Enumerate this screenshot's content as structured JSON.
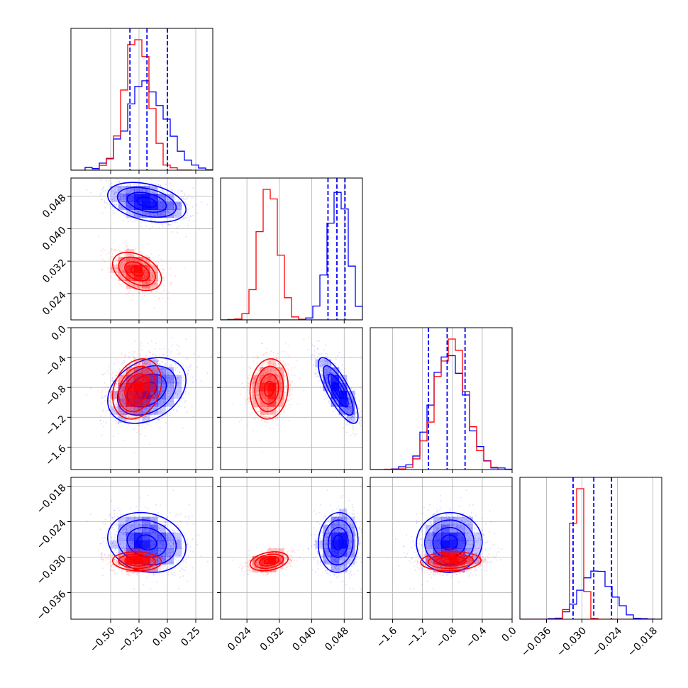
{
  "colors": {
    "blue": "#0000ff",
    "red": "#ff0000"
  },
  "chart_data": {
    "type": "corner",
    "title": "",
    "grid": true,
    "parameters": [
      {
        "ticks": [
          -0.5,
          -0.25,
          0.0,
          0.25
        ],
        "tick_labels": [
          "−0.50",
          "−0.25",
          "0.00",
          "0.25"
        ],
        "range": [
          -0.85,
          0.4
        ]
      },
      {
        "ticks": [
          0.024,
          0.032,
          0.04,
          0.048
        ],
        "tick_labels": [
          "0.024",
          "0.032",
          "0.040",
          "0.048"
        ],
        "range": [
          0.0175,
          0.0525
        ]
      },
      {
        "ticks": [
          -1.6,
          -1.2,
          -0.8,
          -0.4,
          0.0
        ],
        "tick_labels": [
          "−1.6",
          "−1.2",
          "−0.8",
          "−0.4",
          "0.0"
        ],
        "range": [
          -1.9,
          0.0
        ]
      },
      {
        "ticks": [
          -0.036,
          -0.03,
          -0.024,
          -0.018
        ],
        "tick_labels": [
          "−0.036",
          "−0.030",
          "−0.024",
          "−0.018"
        ],
        "range": [
          -0.0405,
          -0.0165
        ]
      }
    ],
    "series": [
      {
        "name": "",
        "color": "#0000ff",
        "mean": [
          -0.18,
          0.0465,
          -0.84,
          -0.0275
        ],
        "sigma": [
          0.17,
          0.0025,
          0.22,
          0.0025
        ],
        "corr": [
          [
            0,
            -0.35
          ],
          [
            0,
            0.3
          ],
          [
            0,
            -0.15
          ],
          [
            1,
            -0.8
          ],
          [
            1,
            0.05
          ],
          [
            2,
            0.05
          ]
        ],
        "quantiles": [
          [
            -0.33,
            -0.18,
            0.0
          ],
          [
            0.044,
            0.0462,
            0.0482
          ],
          [
            -1.12,
            -0.87,
            -0.63
          ],
          [
            -0.0315,
            -0.028,
            -0.025
          ]
        ]
      },
      {
        "name": "",
        "color": "#ff0000",
        "mean": [
          -0.27,
          0.0295,
          -0.83,
          -0.0307
        ],
        "sigma": [
          0.11,
          0.0023,
          0.2,
          0.0008
        ],
        "corr": [
          [
            0,
            -0.4
          ],
          [
            0,
            0.3
          ],
          [
            0,
            -0.1
          ],
          [
            1,
            0.05
          ],
          [
            1,
            0.3
          ],
          [
            2,
            0.05
          ]
        ]
      }
    ]
  }
}
